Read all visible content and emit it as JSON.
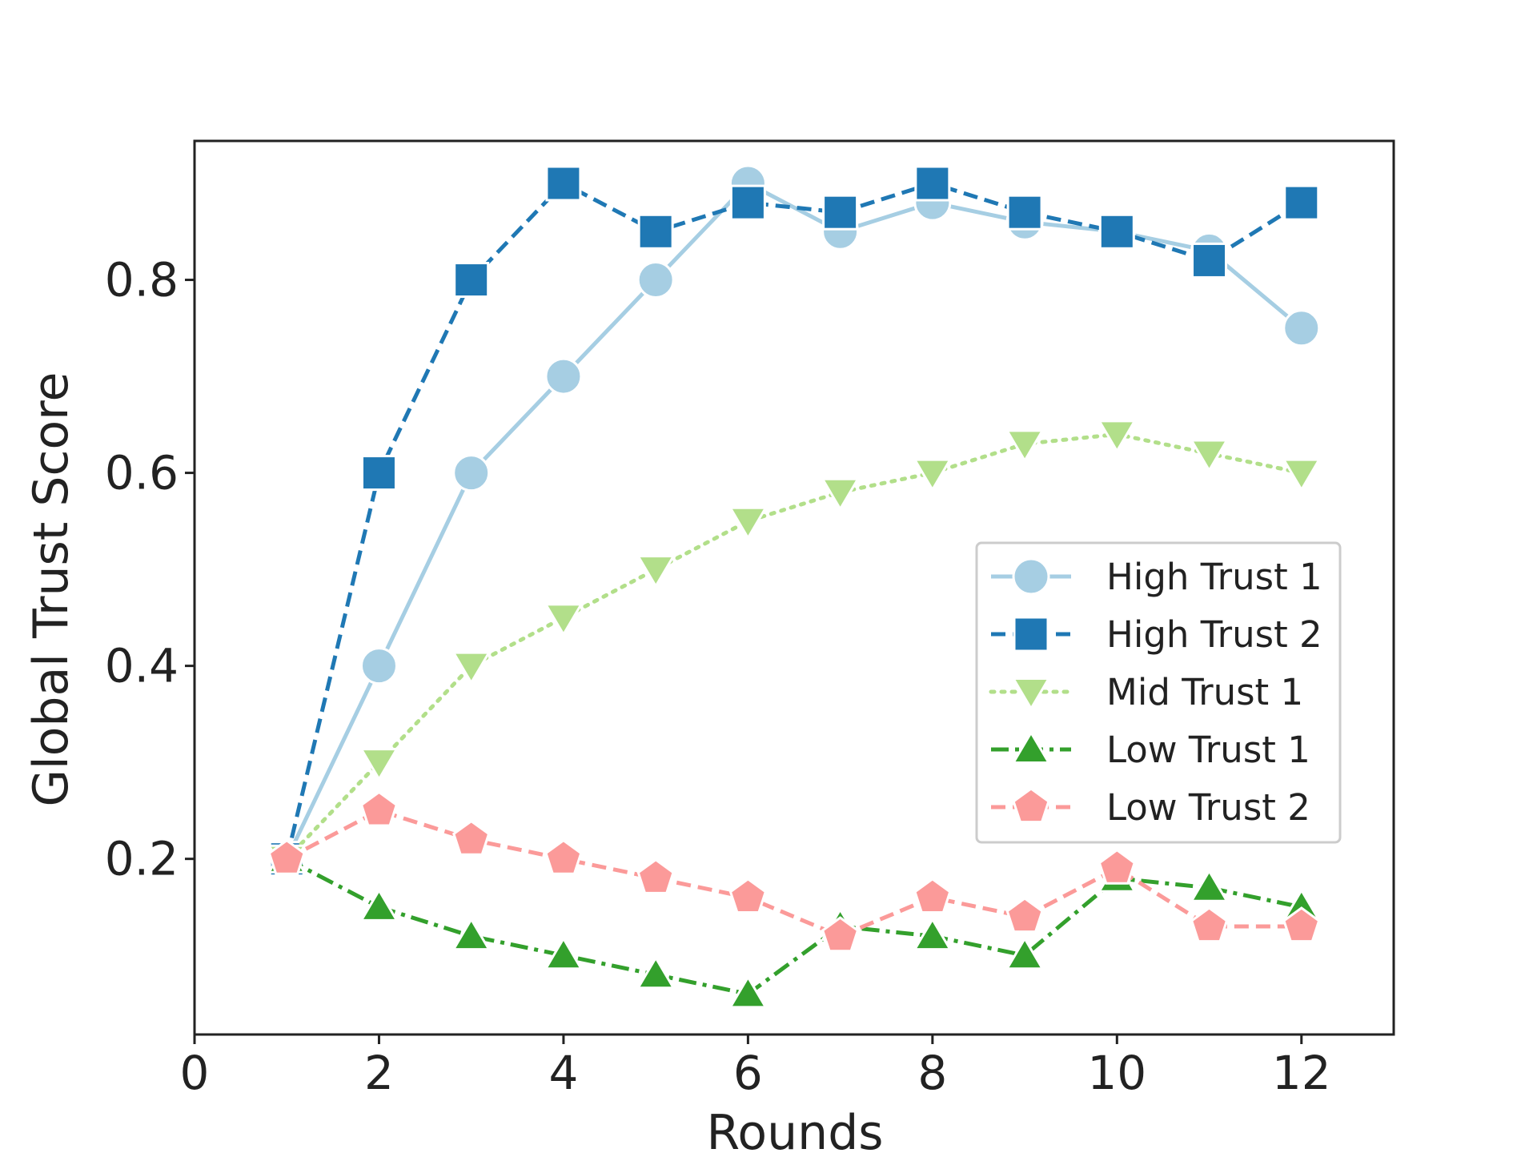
{
  "chart_data": {
    "type": "line",
    "title": "",
    "xlabel": "Rounds",
    "ylabel": "Global Trust Score",
    "xlim": [
      0,
      13
    ],
    "ylim": [
      0.018,
      0.944
    ],
    "xticks": [
      0,
      2,
      4,
      6,
      8,
      10,
      12
    ],
    "xtick_labels": [
      "0",
      "2",
      "4",
      "6",
      "8",
      "10",
      "12"
    ],
    "yticks": [
      0.2,
      0.4,
      0.6,
      0.8
    ],
    "ytick_labels": [
      "0.2",
      "0.4",
      "0.6",
      "0.8"
    ],
    "grid": false,
    "legend_position": "center-right",
    "x": [
      1,
      2,
      3,
      4,
      5,
      6,
      7,
      8,
      9,
      10,
      11,
      12
    ],
    "series": [
      {
        "name": "High Trust 1",
        "color": "#a6cee3",
        "marker": "circle",
        "line_style": "solid",
        "values": [
          0.2,
          0.4,
          0.6,
          0.7,
          0.8,
          0.9,
          0.85,
          0.88,
          0.86,
          0.85,
          0.83,
          0.75
        ]
      },
      {
        "name": "High Trust 2",
        "color": "#1f78b4",
        "marker": "square",
        "line_style": "dashed",
        "values": [
          0.2,
          0.6,
          0.8,
          0.9,
          0.85,
          0.88,
          0.87,
          0.9,
          0.87,
          0.85,
          0.82,
          0.88
        ]
      },
      {
        "name": "Mid Trust 1",
        "color": "#b2df8a",
        "marker": "triangle-down",
        "line_style": "dotted",
        "values": [
          0.2,
          0.3,
          0.4,
          0.45,
          0.5,
          0.55,
          0.58,
          0.6,
          0.63,
          0.64,
          0.62,
          0.6
        ]
      },
      {
        "name": "Low Trust 1",
        "color": "#33a02c",
        "marker": "triangle-up",
        "line_style": "dashdot",
        "values": [
          0.2,
          0.15,
          0.12,
          0.1,
          0.08,
          0.06,
          0.13,
          0.12,
          0.1,
          0.18,
          0.17,
          0.15
        ]
      },
      {
        "name": "Low Trust 2",
        "color": "#fb9a99",
        "marker": "pentagon",
        "line_style": "dashed",
        "values": [
          0.2,
          0.25,
          0.22,
          0.2,
          0.18,
          0.16,
          0.12,
          0.16,
          0.14,
          0.19,
          0.13,
          0.13
        ]
      }
    ]
  }
}
